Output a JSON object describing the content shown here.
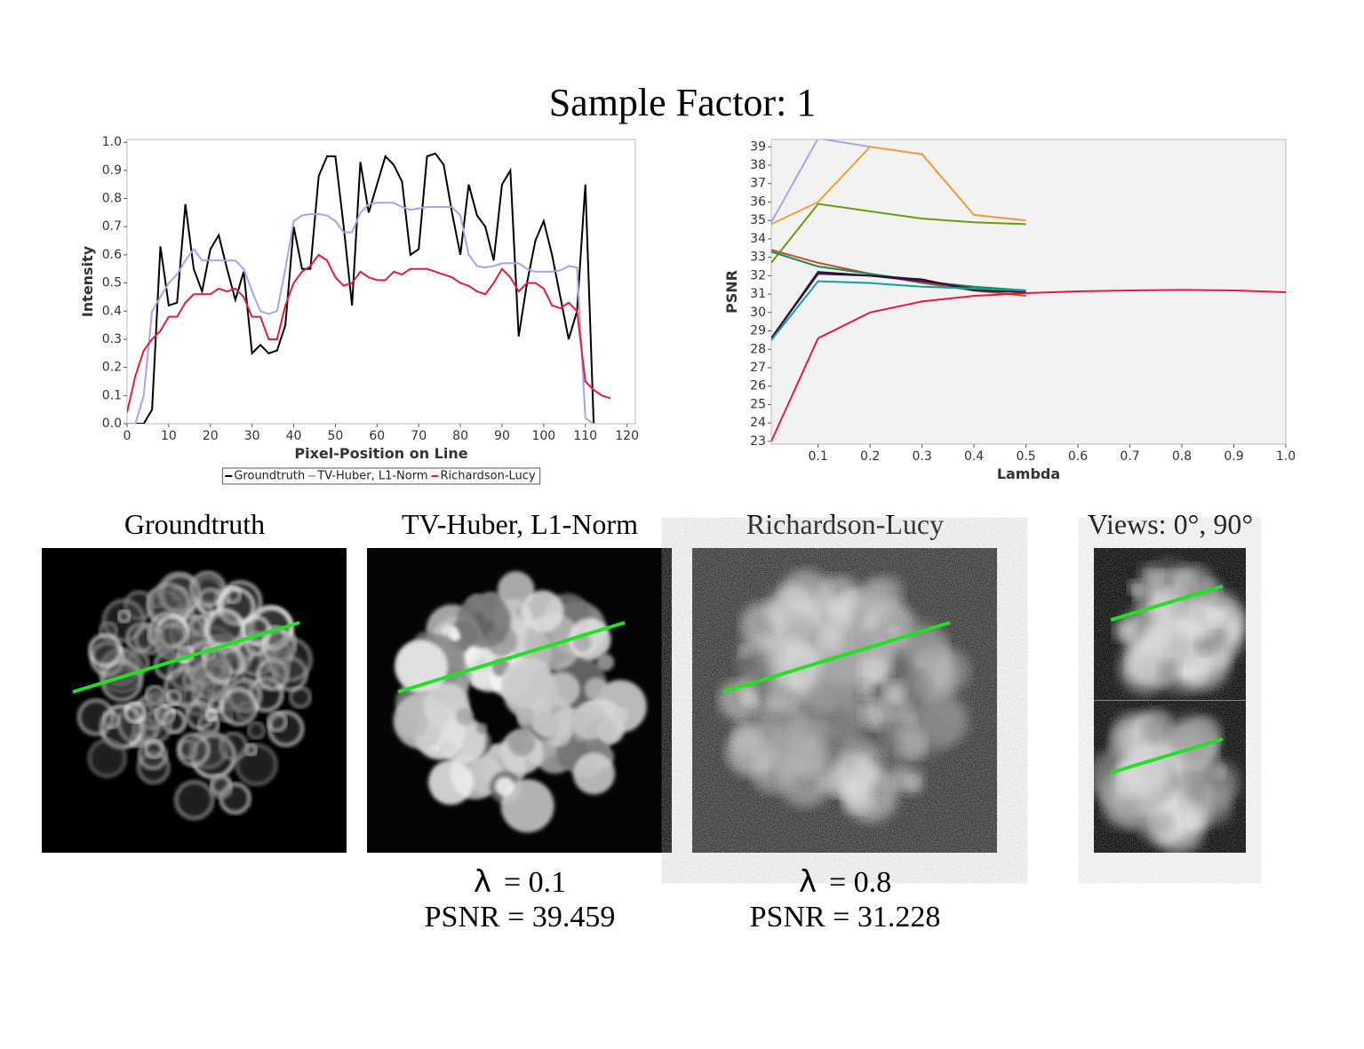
{
  "title": "Sample Factor: 1",
  "chart_data": [
    {
      "type": "line",
      "xlabel": "Pixel-Position on Line",
      "ylabel": "Intensity",
      "x": [
        0,
        2,
        4,
        6,
        8,
        10,
        12,
        14,
        16,
        18,
        20,
        22,
        24,
        26,
        28,
        30,
        32,
        34,
        36,
        38,
        40,
        42,
        44,
        46,
        48,
        50,
        52,
        54,
        56,
        58,
        60,
        62,
        64,
        66,
        68,
        70,
        72,
        74,
        76,
        78,
        80,
        82,
        84,
        86,
        88,
        90,
        92,
        94,
        96,
        98,
        100,
        102,
        104,
        106,
        108,
        110,
        112,
        114,
        116
      ],
      "series": [
        {
          "name": "Groundtruth",
          "color": "#000000",
          "values": [
            0,
            0,
            0,
            0.05,
            0.63,
            0.42,
            0.43,
            0.78,
            0.55,
            0.47,
            0.62,
            0.67,
            0.55,
            0.44,
            0.54,
            0.25,
            0.28,
            0.25,
            0.26,
            0.35,
            0.7,
            0.55,
            0.55,
            0.88,
            0.95,
            0.95,
            0.7,
            0.42,
            0.93,
            0.75,
            0.85,
            0.95,
            0.92,
            0.86,
            0.6,
            0.62,
            0.95,
            0.96,
            0.92,
            0.75,
            0.6,
            0.85,
            0.74,
            0.7,
            0.58,
            0.85,
            0.9,
            0.31,
            0.5,
            0.65,
            0.72,
            0.6,
            0.45,
            0.3,
            0.4,
            0.85,
            0,
            null,
            null
          ]
        },
        {
          "name": "TV-Huber, L1-Norm",
          "color": "#a3a3f0",
          "values": [
            0,
            0,
            0.1,
            0.4,
            0.45,
            0.5,
            0.53,
            0.58,
            0.62,
            0.58,
            0.58,
            0.58,
            0.58,
            0.58,
            0.55,
            0.47,
            0.4,
            0.39,
            0.4,
            0.55,
            0.72,
            0.74,
            0.745,
            0.745,
            0.74,
            0.72,
            0.68,
            0.68,
            0.75,
            0.78,
            0.785,
            0.785,
            0.785,
            0.77,
            0.76,
            0.765,
            0.77,
            0.77,
            0.77,
            0.77,
            0.74,
            0.6,
            0.56,
            0.555,
            0.56,
            0.57,
            0.57,
            0.57,
            0.55,
            0.54,
            0.54,
            0.54,
            0.545,
            0.56,
            0.555,
            0.02,
            0,
            null,
            null
          ]
        },
        {
          "name": "Richardson-Lucy",
          "color": "#e8193c",
          "values": [
            0.04,
            0.17,
            0.26,
            0.3,
            0.33,
            0.38,
            0.38,
            0.43,
            0.46,
            0.46,
            0.46,
            0.48,
            0.47,
            0.48,
            0.45,
            0.38,
            0.38,
            0.3,
            0.3,
            0.42,
            0.5,
            0.54,
            0.56,
            0.6,
            0.58,
            0.52,
            0.49,
            0.5,
            0.54,
            0.52,
            0.51,
            0.51,
            0.54,
            0.53,
            0.55,
            0.55,
            0.55,
            0.54,
            0.53,
            0.52,
            0.5,
            0.49,
            0.47,
            0.46,
            0.5,
            0.55,
            0.52,
            0.47,
            0.5,
            0.5,
            0.48,
            0.42,
            0.41,
            0.43,
            0.4,
            0.15,
            0.12,
            0.1,
            0.09
          ]
        }
      ],
      "xlim": [
        0,
        122
      ],
      "xticks": [
        0,
        10,
        20,
        30,
        40,
        50,
        60,
        70,
        80,
        90,
        100,
        110,
        120
      ],
      "ylim": [
        0,
        1.01
      ],
      "yticks": [
        {
          "value": 0,
          "label": "0.0"
        },
        0.1,
        0.2,
        0.3,
        0.4,
        0.5,
        0.6,
        0.7,
        0.8,
        0.9,
        {
          "value": 1,
          "label": "1.0"
        }
      ],
      "legend": "bottom",
      "background": "#ffffff"
    },
    {
      "type": "line",
      "xlabel": "Lambda",
      "ylabel": "PSNR",
      "x": [
        0.01,
        0.1,
        0.2,
        0.3,
        0.4,
        0.5,
        0.6,
        0.7,
        0.8,
        0.9,
        1.0
      ],
      "series": [
        {
          "color": "#a3a3f0",
          "values": [
            34.9,
            39.459,
            39.0,
            38.6,
            35.3,
            35.0,
            null,
            null,
            null,
            null,
            null
          ]
        },
        {
          "color": "#f0a030",
          "values": [
            34.8,
            36.0,
            39.0,
            38.6,
            35.3,
            35.0,
            null,
            null,
            null,
            null,
            null
          ]
        },
        {
          "color": "#6a9a10",
          "values": [
            32.7,
            35.9,
            35.5,
            35.1,
            34.9,
            34.8,
            null,
            null,
            null,
            null,
            null
          ]
        },
        {
          "color": "#c0502a",
          "values": [
            33.4,
            32.7,
            32.1,
            31.6,
            31.2,
            30.9,
            null,
            null,
            null,
            null,
            null
          ]
        },
        {
          "color": "#1a8a50",
          "values": [
            33.3,
            32.5,
            32.1,
            31.7,
            31.4,
            31.2,
            null,
            null,
            null,
            null,
            null
          ]
        },
        {
          "color": "#20206a",
          "values": [
            28.6,
            32.1,
            32.0,
            31.7,
            31.3,
            31.2,
            null,
            null,
            null,
            null,
            null
          ]
        },
        {
          "color": "#301030",
          "values": [
            28.6,
            32.2,
            32.0,
            31.8,
            31.2,
            31.1,
            null,
            null,
            null,
            null,
            null
          ]
        },
        {
          "color": "#10a0a0",
          "values": [
            28.5,
            31.7,
            31.6,
            31.4,
            31.3,
            31.2,
            null,
            null,
            null,
            null,
            null
          ]
        },
        {
          "color": "#e8193c",
          "values": [
            23,
            28.6,
            30.0,
            30.6,
            30.9,
            31.05,
            31.15,
            31.2,
            31.228,
            31.2,
            31.1
          ]
        }
      ],
      "xlim": [
        0.01,
        1.0
      ],
      "xticks": [
        0.1,
        0.2,
        0.3,
        0.4,
        0.5,
        0.6,
        0.7,
        0.8,
        0.9,
        {
          "value": 1,
          "label": "1.0"
        }
      ],
      "ylim": [
        22.85,
        39.4
      ],
      "yticks": [
        23,
        24,
        25,
        26,
        27,
        28,
        29,
        30,
        31,
        32,
        33,
        34,
        35,
        36,
        37,
        38,
        39
      ],
      "background": "#f2f2f2"
    }
  ],
  "panels": [
    {
      "title": "Groundtruth"
    },
    {
      "title": "TV-Huber, L1-Norm",
      "lambda_symbol": "λ",
      "lambda": "= 0.1",
      "psnr": "PSNR = 39.459"
    },
    {
      "title": "Richardson-Lucy",
      "lambda_symbol": "λ",
      "lambda": "= 0.8",
      "psnr": "PSNR = 31.228"
    },
    {
      "title": "Views: 0°, 90°"
    }
  ]
}
